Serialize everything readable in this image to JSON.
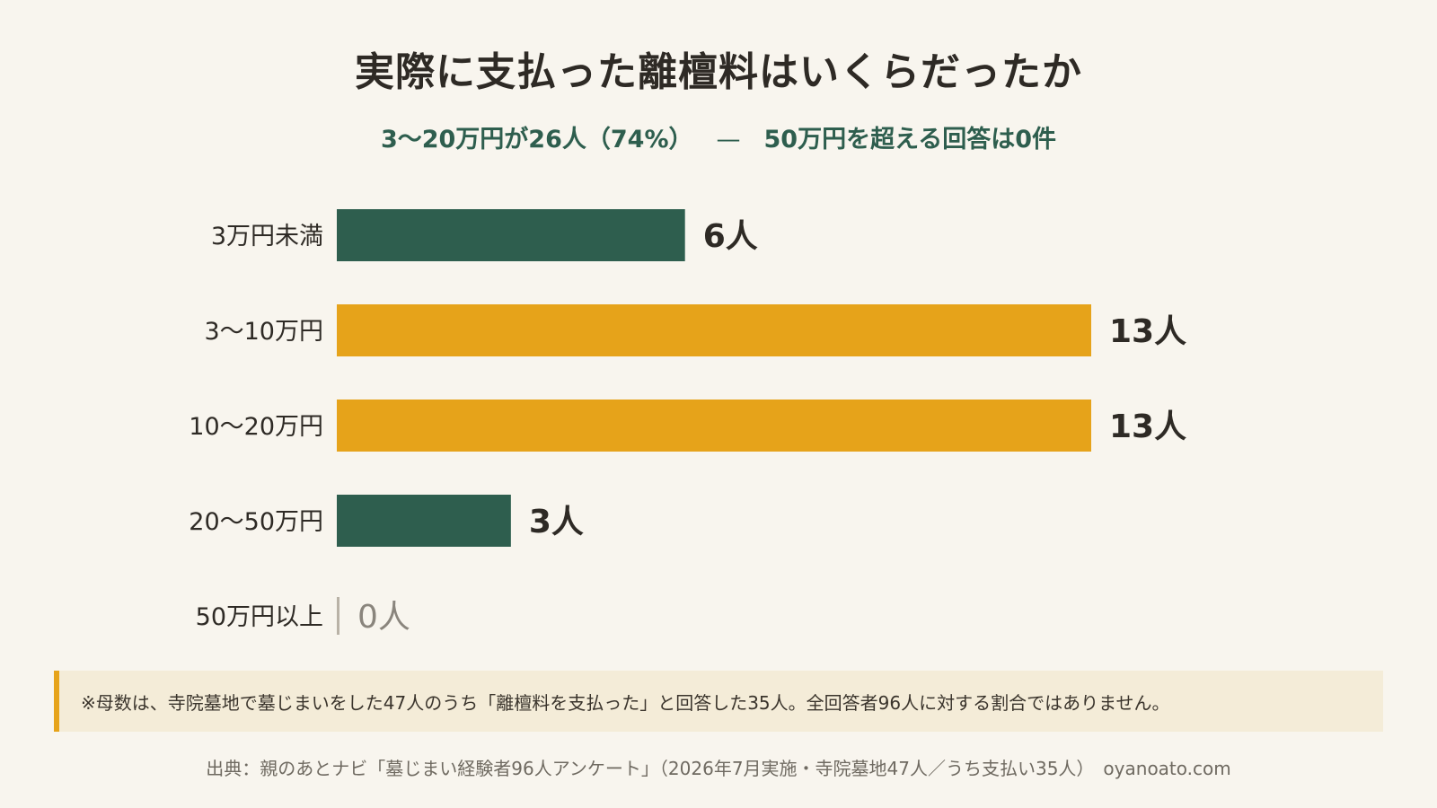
{
  "title": "実際に支払った離檀料はいくらだったか",
  "subtitle": {
    "left": "3〜20万円が26人（74%）",
    "sep": "—",
    "right": "50万円を超える回答は0件"
  },
  "colors": {
    "green": "#2e5e4e",
    "gold": "#e6a31a",
    "zero_tick": "#b9b2a6",
    "zero_label": "#8a857d"
  },
  "chart_data": {
    "type": "bar",
    "orientation": "horizontal",
    "categories": [
      "3万円未満",
      "3〜10万円",
      "10〜20万円",
      "20〜50万円",
      "50万円以上"
    ],
    "values": [
      6,
      13,
      13,
      3,
      0
    ],
    "value_labels": [
      "6人",
      "13人",
      "13人",
      "3人",
      "0人"
    ],
    "highlight": [
      false,
      true,
      true,
      false,
      false
    ],
    "xlim": [
      0,
      13
    ]
  },
  "note": "※母数は、寺院墓地で墓じまいをした47人のうち「離檀料を支払った」と回答した35人。全回答者96人に対する割合ではありません。",
  "source": "出典：親のあとナビ「墓じまい経験者96人アンケート」（2026年7月実施・寺院墓地47人／うち支払い35人）　oyanoato.com"
}
